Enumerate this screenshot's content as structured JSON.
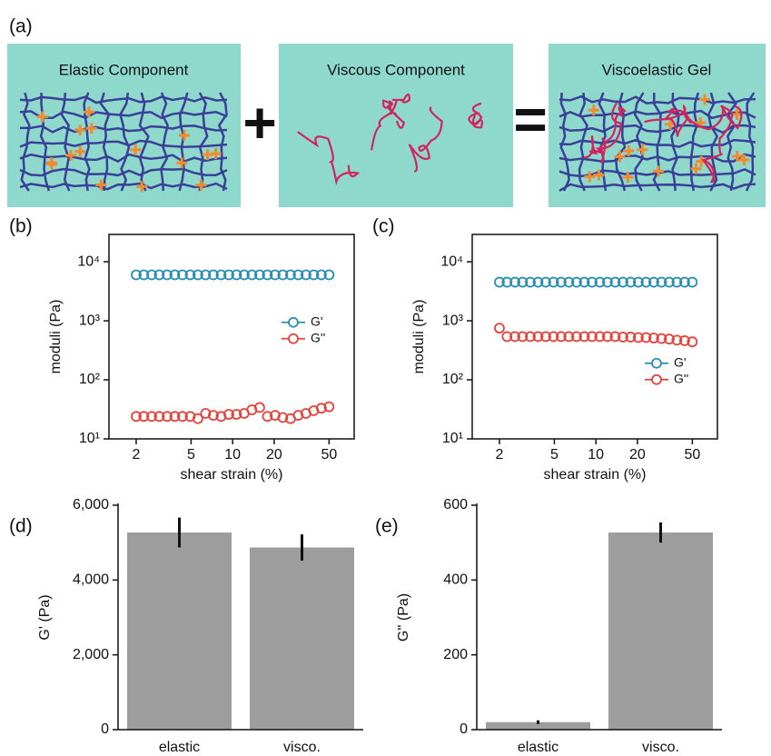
{
  "diagram": {
    "panel_label": "(a)",
    "boxes": [
      "Elastic Component",
      "Viscous Component",
      "Viscoelastic Gel"
    ],
    "operators": [
      "+",
      "="
    ]
  },
  "chart_data": [
    {
      "type": "scatter",
      "panel_label": "(b)",
      "xlabel": "shear strain (%)",
      "ylabel": "moduli (Pa)",
      "x": [
        2,
        2.27,
        2.59,
        2.94,
        3.35,
        3.81,
        4.33,
        4.93,
        5.6,
        6.37,
        7.25,
        8.25,
        9.38,
        10.67,
        12.13,
        13.8,
        15.7,
        17.86,
        20.31,
        23.1,
        26.28,
        29.89,
        34,
        38.67,
        43.98,
        50
      ],
      "series": [
        {
          "name": "G'",
          "color": "#2a8db3",
          "values": [
            6000,
            6000,
            6000,
            6000,
            6000,
            6000,
            6000,
            6000,
            6000,
            6000,
            6000,
            6000,
            6000,
            6000,
            6000,
            6000,
            6000,
            6000,
            6000,
            6000,
            6000,
            6000,
            6000,
            6000,
            6000,
            6000
          ]
        },
        {
          "name": "G''",
          "color": "#e2433b",
          "values": [
            24,
            24,
            24,
            24,
            24,
            24,
            24,
            24,
            22,
            27,
            25,
            24,
            26,
            26,
            27,
            31,
            34,
            24,
            25,
            23,
            22,
            25,
            27,
            30,
            33,
            35
          ]
        }
      ],
      "xlog": true,
      "ylog": true,
      "xlim": [
        1.27,
        76
      ],
      "ylim": [
        10,
        29000
      ],
      "xticks": [
        2,
        5,
        10,
        20,
        50
      ],
      "yticks": [
        {
          "value": 10,
          "label": "10¹"
        },
        {
          "value": 100,
          "label": "10²"
        },
        {
          "value": 1000,
          "label": "10³"
        },
        {
          "value": 10000,
          "label": "10⁴"
        }
      ],
      "legend": "center right"
    },
    {
      "type": "scatter",
      "panel_label": "(c)",
      "xlabel": "shear strain (%)",
      "ylabel": "moduli (Pa)",
      "x": [
        2,
        2.27,
        2.59,
        2.94,
        3.35,
        3.81,
        4.33,
        4.93,
        5.6,
        6.37,
        7.25,
        8.25,
        9.38,
        10.67,
        12.13,
        13.8,
        15.7,
        17.86,
        20.31,
        23.1,
        26.28,
        29.89,
        34,
        38.67,
        43.98,
        50
      ],
      "series": [
        {
          "name": "G'",
          "color": "#2a8db3",
          "values": [
            4500,
            4500,
            4500,
            4500,
            4500,
            4500,
            4500,
            4500,
            4500,
            4500,
            4500,
            4500,
            4500,
            4500,
            4500,
            4500,
            4500,
            4500,
            4500,
            4500,
            4500,
            4500,
            4500,
            4500,
            4500,
            4500
          ]
        },
        {
          "name": "G''",
          "color": "#e2433b",
          "values": [
            750,
            540,
            540,
            540,
            540,
            540,
            540,
            540,
            540,
            540,
            540,
            540,
            540,
            540,
            540,
            540,
            530,
            530,
            520,
            520,
            510,
            500,
            490,
            470,
            460,
            440
          ]
        }
      ],
      "xlog": true,
      "ylog": true,
      "xlim": [
        1.27,
        76
      ],
      "ylim": [
        10,
        29000
      ],
      "xticks": [
        2,
        5,
        10,
        20,
        50
      ],
      "yticks": [
        {
          "value": 10,
          "label": "10¹"
        },
        {
          "value": 100,
          "label": "10²"
        },
        {
          "value": 1000,
          "label": "10³"
        },
        {
          "value": 10000,
          "label": "10⁴"
        }
      ],
      "legend": "lower right"
    },
    {
      "type": "bar",
      "panel_label": "(d)",
      "ylabel": "G' (Pa)",
      "categories": [
        "elastic",
        "visco."
      ],
      "values": [
        5270,
        4870
      ],
      "errors": [
        400,
        350
      ],
      "color": "#9d9d9d",
      "ylim": [
        0,
        6000
      ],
      "yticks": [
        0,
        {
          "value": 2000,
          "label": "2,000"
        },
        {
          "value": 4000,
          "label": "4,000"
        },
        {
          "value": 6000,
          "label": "6,000"
        }
      ]
    },
    {
      "type": "bar",
      "panel_label": "(e)",
      "ylabel": "G'' (Pa)",
      "categories": [
        "elastic",
        "visco."
      ],
      "values": [
        20,
        527
      ],
      "errors": [
        5,
        27
      ],
      "color": "#9d9d9d",
      "ylim": [
        0,
        600
      ],
      "yticks": [
        0,
        200,
        400,
        600
      ]
    }
  ]
}
